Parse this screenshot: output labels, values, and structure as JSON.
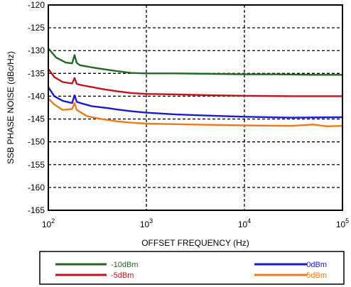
{
  "chart_data": {
    "type": "line",
    "title": "",
    "xlabel": "OFFSET FREQUENCY (Hz)",
    "ylabel": "SSB PHASE NOISE (dBc/Hz)",
    "xscale": "log",
    "xlim": [
      100,
      100000
    ],
    "ylim": [
      -165,
      -120
    ],
    "grid": "dashed",
    "legend_placement": "bottom",
    "x_ticks": [
      {
        "base": "10",
        "exp": "2",
        "value": 100
      },
      {
        "base": "10",
        "exp": "3",
        "value": 1000
      },
      {
        "base": "10",
        "exp": "4",
        "value": 10000
      },
      {
        "base": "10",
        "exp": "5",
        "value": 100000
      }
    ],
    "y_ticks": [
      "-120",
      "-125",
      "-130",
      "-135",
      "-140",
      "-145",
      "-150",
      "-155",
      "-160",
      "-165"
    ],
    "series": [
      {
        "name": "-10dBm",
        "color": "#1e6b1e",
        "points": [
          [
            100,
            -129.5
          ],
          [
            120,
            -131.5
          ],
          [
            150,
            -132.6
          ],
          [
            175,
            -132.8
          ],
          [
            185,
            -131.0
          ],
          [
            195,
            -132.7
          ],
          [
            210,
            -133.2
          ],
          [
            250,
            -133.5
          ],
          [
            300,
            -133.8
          ],
          [
            400,
            -134.2
          ],
          [
            500,
            -134.5
          ],
          [
            700,
            -134.9
          ],
          [
            1000,
            -135.0
          ],
          [
            2000,
            -135.0
          ],
          [
            5000,
            -135.1
          ],
          [
            10000,
            -135.2
          ],
          [
            20000,
            -135.2
          ],
          [
            50000,
            -135.3
          ],
          [
            100000,
            -135.3
          ]
        ]
      },
      {
        "name": "-5dBm",
        "color": "#c0141a",
        "points": [
          [
            100,
            -134.0
          ],
          [
            115,
            -135.8
          ],
          [
            140,
            -136.9
          ],
          [
            175,
            -137.2
          ],
          [
            185,
            -136.0
          ],
          [
            195,
            -137.3
          ],
          [
            220,
            -137.6
          ],
          [
            280,
            -138.0
          ],
          [
            350,
            -138.4
          ],
          [
            500,
            -138.9
          ],
          [
            700,
            -139.3
          ],
          [
            1000,
            -139.5
          ],
          [
            2000,
            -139.6
          ],
          [
            5000,
            -139.8
          ],
          [
            10000,
            -139.9
          ],
          [
            30000,
            -140.0
          ],
          [
            100000,
            -140.0
          ]
        ]
      },
      {
        "name": "0dBm",
        "color": "#1a1ad0",
        "points": [
          [
            100,
            -138.0
          ],
          [
            115,
            -140.0
          ],
          [
            140,
            -141.0
          ],
          [
            175,
            -141.5
          ],
          [
            185,
            -139.8
          ],
          [
            195,
            -141.2
          ],
          [
            220,
            -141.6
          ],
          [
            280,
            -142.2
          ],
          [
            400,
            -142.6
          ],
          [
            500,
            -142.9
          ],
          [
            700,
            -143.3
          ],
          [
            1000,
            -143.6
          ],
          [
            2000,
            -144.0
          ],
          [
            5000,
            -144.3
          ],
          [
            10000,
            -144.5
          ],
          [
            30000,
            -144.7
          ],
          [
            100000,
            -144.6
          ]
        ]
      },
      {
        "name": "5dBm",
        "color": "#ee7a1a",
        "points": [
          [
            100,
            -140.5
          ],
          [
            115,
            -141.8
          ],
          [
            140,
            -143.0
          ],
          [
            175,
            -142.8
          ],
          [
            185,
            -141.5
          ],
          [
            195,
            -143.0
          ],
          [
            220,
            -143.7
          ],
          [
            250,
            -144.4
          ],
          [
            350,
            -145.0
          ],
          [
            500,
            -145.5
          ],
          [
            700,
            -145.8
          ],
          [
            1000,
            -146.0
          ],
          [
            3000,
            -146.2
          ],
          [
            10000,
            -146.4
          ],
          [
            30000,
            -146.5
          ],
          [
            50000,
            -146.2
          ],
          [
            70000,
            -146.6
          ],
          [
            100000,
            -146.5
          ]
        ]
      }
    ]
  },
  "legend": {
    "entries": [
      {
        "label": "-10dBm",
        "color": "#1e6b1e"
      },
      {
        "label": "-5dBm",
        "color": "#c0141a"
      },
      {
        "label": "0dBm",
        "color": "#1a1ad0"
      },
      {
        "label": "5dBm",
        "color": "#ee7a1a"
      }
    ]
  }
}
